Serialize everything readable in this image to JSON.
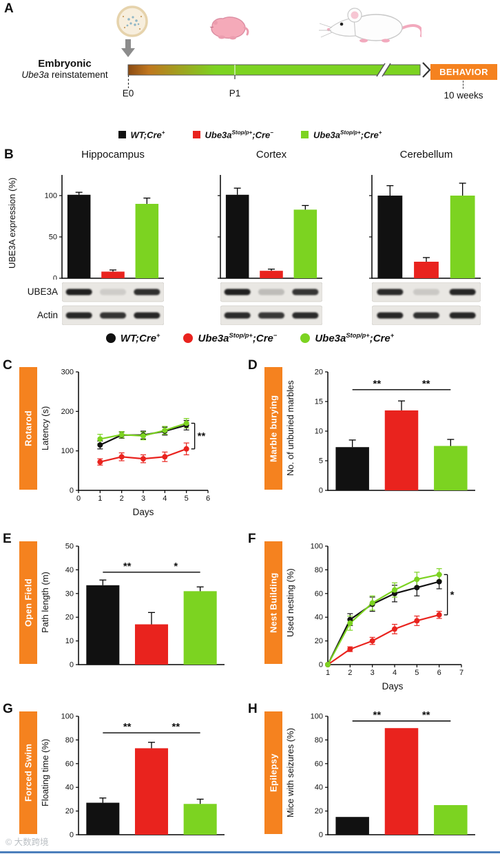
{
  "watermark": "© 大数跨境",
  "panels": {
    "a": "A",
    "b": "B",
    "c": "C",
    "d": "D",
    "e": "E",
    "f": "F",
    "g": "G",
    "h": "H"
  },
  "colors": {
    "black": "#111111",
    "red": "#e9231e",
    "green": "#7cd321",
    "orange": "#f5821f"
  },
  "genotype_groups": [
    "WT;Cre+",
    "Ube3aStop/p+;Cre−",
    "Ube3aStop/p+;Cre+"
  ],
  "legend_items": [
    {
      "color": "#111111",
      "parts": [
        {
          "t": "WT;Cre"
        },
        {
          "t": "+",
          "sup": true
        }
      ]
    },
    {
      "color": "#e9231e",
      "parts": [
        {
          "t": "Ube3a"
        },
        {
          "t": "Stop/p+",
          "sup": true
        },
        {
          "t": ";Cre"
        },
        {
          "t": "−",
          "sup": true
        }
      ]
    },
    {
      "color": "#7cd321",
      "parts": [
        {
          "t": "Ube3a"
        },
        {
          "t": "Stop/p+",
          "sup": true
        },
        {
          "t": ";Cre"
        },
        {
          "t": "+",
          "sup": true
        }
      ]
    }
  ],
  "panel_a": {
    "title_line1": "Embryonic",
    "title_line2_italic": "Ube3a",
    "title_line2_rest": " reinstatement",
    "t0_label": "E0",
    "t1_label": "P1",
    "end_label": "10 weeks",
    "behavior_label": "BEHAVIOR"
  },
  "panel_b": {
    "ylabel": "UBE3A expression (%)",
    "blot_rows": [
      "UBE3A",
      "Actin"
    ],
    "blots": {
      "hippocampus": [
        [
          0.95,
          0.12,
          0.88
        ],
        [
          0.92,
          0.86,
          0.92
        ]
      ],
      "cortex": [
        [
          0.95,
          0.2,
          0.85
        ],
        [
          0.9,
          0.84,
          0.9
        ]
      ],
      "cerebellum": [
        [
          0.9,
          0.14,
          0.92
        ],
        [
          0.92,
          0.88,
          0.92
        ]
      ]
    }
  },
  "chart_data": [
    {
      "id": "hippocampus",
      "type": "bar",
      "title": "Hippocampus",
      "ylabel": "UBE3A expression (%)",
      "ylim": [
        0,
        125
      ],
      "yticks": [
        0,
        50,
        100
      ],
      "show_ytick_labels": true,
      "categories": [
        "WT;Cre+",
        "Ube3aStop/p+;Cre−",
        "Ube3aStop/p+;Cre+"
      ],
      "values": [
        101,
        8,
        90
      ],
      "errors": [
        3,
        2,
        7
      ],
      "group_colors": [
        "#111111",
        "#e9231e",
        "#7cd321"
      ]
    },
    {
      "id": "cortex",
      "type": "bar",
      "title": "Cortex",
      "ylabel": "UBE3A expression (%)",
      "ylim": [
        0,
        125
      ],
      "yticks": [
        0,
        50,
        100
      ],
      "show_ytick_labels": false,
      "categories": [
        "WT;Cre+",
        "Ube3aStop/p+;Cre−",
        "Ube3aStop/p+;Cre+"
      ],
      "values": [
        101,
        9,
        83
      ],
      "errors": [
        8,
        2,
        5
      ],
      "group_colors": [
        "#111111",
        "#e9231e",
        "#7cd321"
      ]
    },
    {
      "id": "cerebellum",
      "type": "bar",
      "title": "Cerebellum",
      "ylabel": "UBE3A expression (%)",
      "ylim": [
        0,
        125
      ],
      "yticks": [
        0,
        50,
        100
      ],
      "show_ytick_labels": false,
      "categories": [
        "WT;Cre+",
        "Ube3aStop/p+;Cre−",
        "Ube3aStop/p+;Cre+"
      ],
      "values": [
        100,
        20,
        100
      ],
      "errors": [
        12,
        5,
        15
      ],
      "group_colors": [
        "#111111",
        "#e9231e",
        "#7cd321"
      ]
    },
    {
      "id": "rotarod",
      "type": "line",
      "panel": "C",
      "sidebar_label": "Rotarod",
      "ylabel": "Latency (s)",
      "xlabel": "Days",
      "xlim": [
        0,
        6
      ],
      "xticks": [
        0,
        1,
        2,
        3,
        4,
        5,
        6
      ],
      "ylim": [
        0,
        300
      ],
      "yticks": [
        0,
        100,
        200,
        300
      ],
      "x": [
        1,
        2,
        3,
        4,
        5
      ],
      "series": [
        {
          "name": "WT;Cre+",
          "color": "#111111",
          "values": [
            115,
            140,
            140,
            150,
            165
          ],
          "errors": [
            10,
            8,
            10,
            10,
            12
          ]
        },
        {
          "name": "Ube3aStop/p+;Cre−",
          "color": "#e9231e",
          "values": [
            72,
            85,
            80,
            85,
            105
          ],
          "errors": [
            8,
            10,
            10,
            12,
            15
          ]
        },
        {
          "name": "Ube3aStop/p+;Cre+",
          "color": "#7cd321",
          "values": [
            130,
            141,
            138,
            152,
            170
          ],
          "errors": [
            12,
            8,
            10,
            10,
            12
          ]
        }
      ],
      "significance": [
        {
          "label": "**",
          "compare": "end"
        }
      ]
    },
    {
      "id": "marble",
      "type": "bar",
      "panel": "D",
      "sidebar_label": "Marble burying",
      "ylabel": "No. of unburied marbles",
      "ylim": [
        0,
        20
      ],
      "yticks": [
        0,
        5,
        10,
        15,
        20
      ],
      "show_ytick_labels": true,
      "categories": [
        "WT;Cre+",
        "Ube3aStop/p+;Cre−",
        "Ube3aStop/p+;Cre+"
      ],
      "values": [
        7.3,
        13.5,
        7.5
      ],
      "errors": [
        1.2,
        1.6,
        1.1
      ],
      "group_colors": [
        "#111111",
        "#e9231e",
        "#7cd321"
      ],
      "significance": [
        {
          "pair": [
            0,
            1
          ],
          "label": "**",
          "y": 17
        },
        {
          "pair": [
            1,
            2
          ],
          "label": "**",
          "y": 17
        }
      ]
    },
    {
      "id": "openfield",
      "type": "bar",
      "panel": "E",
      "sidebar_label": "Open Field",
      "ylabel": "Path length (m)",
      "ylim": [
        0,
        50
      ],
      "yticks": [
        0,
        10,
        20,
        30,
        40,
        50
      ],
      "show_ytick_labels": true,
      "categories": [
        "WT;Cre+",
        "Ube3aStop/p+;Cre−",
        "Ube3aStop/p+;Cre+"
      ],
      "values": [
        33.5,
        17,
        31
      ],
      "errors": [
        2.2,
        5,
        1.8
      ],
      "group_colors": [
        "#111111",
        "#e9231e",
        "#7cd321"
      ],
      "significance": [
        {
          "pair": [
            0,
            1
          ],
          "label": "**",
          "y": 39
        },
        {
          "pair": [
            1,
            2
          ],
          "label": "*",
          "y": 39
        }
      ]
    },
    {
      "id": "nest",
      "type": "line",
      "panel": "F",
      "sidebar_label": "Nest Building",
      "ylabel": "Used nesting (%)",
      "xlabel": "Days",
      "xlim": [
        1,
        7
      ],
      "xticks": [
        1,
        2,
        3,
        4,
        5,
        6,
        7
      ],
      "ylim": [
        0,
        100
      ],
      "yticks": [
        0,
        20,
        40,
        60,
        80,
        100
      ],
      "x": [
        1,
        2,
        3,
        4,
        5,
        6
      ],
      "series": [
        {
          "name": "WT;Cre+",
          "color": "#111111",
          "values": [
            0,
            38,
            51,
            60,
            65,
            70
          ],
          "errors": [
            0,
            5,
            6,
            7,
            7,
            6
          ]
        },
        {
          "name": "Ube3aStop/p+;Cre−",
          "color": "#e9231e",
          "values": [
            0,
            13,
            20,
            30,
            37,
            42
          ],
          "errors": [
            0,
            2,
            3,
            4,
            4,
            3
          ]
        },
        {
          "name": "Ube3aStop/p+;Cre+",
          "color": "#7cd321",
          "values": [
            0,
            35,
            52,
            63,
            72,
            76
          ],
          "errors": [
            0,
            6,
            6,
            6,
            6,
            5
          ]
        }
      ],
      "significance": [
        {
          "label": "*",
          "compare": "end"
        }
      ]
    },
    {
      "id": "swim",
      "type": "bar",
      "panel": "G",
      "sidebar_label": "Forced Swim",
      "ylabel": "Floating time (%)",
      "ylim": [
        0,
        100
      ],
      "yticks": [
        0,
        20,
        40,
        60,
        80,
        100
      ],
      "show_ytick_labels": true,
      "categories": [
        "WT;Cre+",
        "Ube3aStop/p+;Cre−",
        "Ube3aStop/p+;Cre+"
      ],
      "values": [
        27,
        73,
        26
      ],
      "errors": [
        4,
        5,
        4
      ],
      "group_colors": [
        "#111111",
        "#e9231e",
        "#7cd321"
      ],
      "significance": [
        {
          "pair": [
            0,
            1
          ],
          "label": "**",
          "y": 86
        },
        {
          "pair": [
            1,
            2
          ],
          "label": "**",
          "y": 86
        }
      ]
    },
    {
      "id": "epilepsy",
      "type": "bar",
      "panel": "H",
      "sidebar_label": "Epilepsy",
      "ylabel": "Mice with seizures (%)",
      "ylim": [
        0,
        100
      ],
      "yticks": [
        0,
        20,
        40,
        60,
        80,
        100
      ],
      "show_ytick_labels": true,
      "categories": [
        "WT;Cre+",
        "Ube3aStop/p+;Cre−",
        "Ube3aStop/p+;Cre+"
      ],
      "values": [
        15,
        90,
        25
      ],
      "group_colors": [
        "#111111",
        "#e9231e",
        "#7cd321"
      ],
      "significance": [
        {
          "pair": [
            0,
            1
          ],
          "label": "**",
          "y": 96
        },
        {
          "pair": [
            1,
            2
          ],
          "label": "**",
          "y": 96
        }
      ]
    }
  ]
}
